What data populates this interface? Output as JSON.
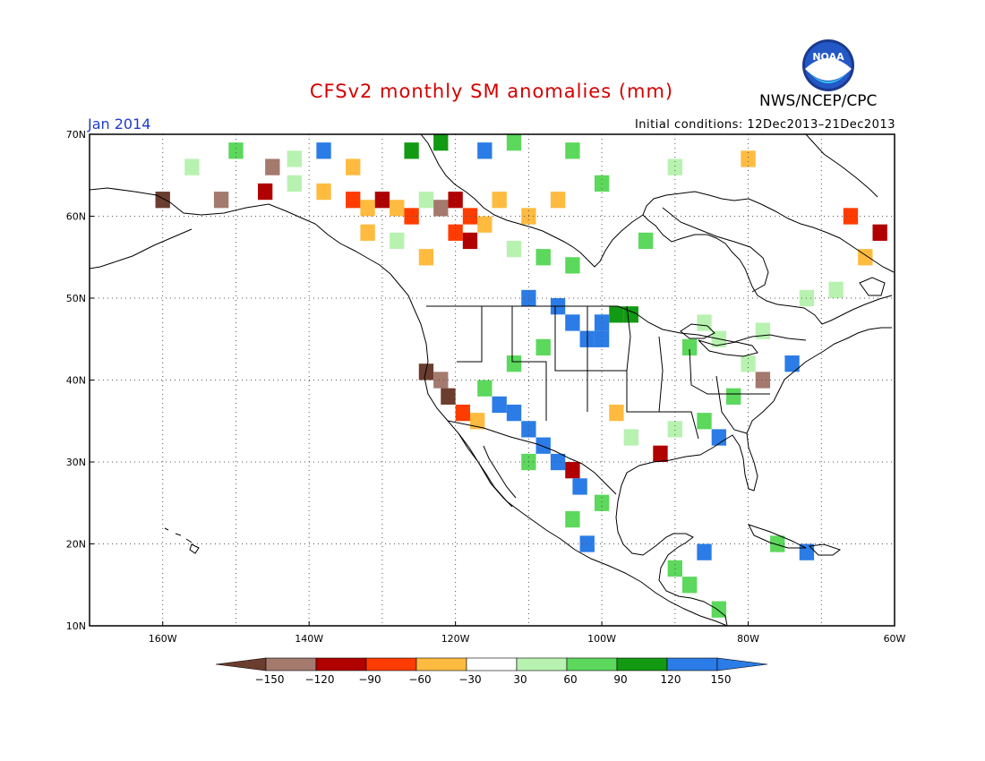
{
  "title": "CFSv2 monthly SM anomalies (mm)",
  "agency": "NWS/NCEP/CPC",
  "logo_text": "NOAA",
  "month_label": "Jan 2014",
  "initial_conditions": "Initial conditions: 12Dec2013–21Dec2013",
  "map": {
    "projection": "lat-lon",
    "lon_range": [
      -170,
      -60
    ],
    "lat_range": [
      10,
      70
    ],
    "gridlines": "dotted",
    "lat_ticks": [
      "10N",
      "20N",
      "30N",
      "40N",
      "50N",
      "60N",
      "70N"
    ],
    "lon_ticks": [
      "160W",
      "140W",
      "120W",
      "100W",
      "80W",
      "60W"
    ]
  },
  "colorbar": {
    "levels": [
      -150,
      -120,
      -90,
      -60,
      -30,
      30,
      60,
      90,
      120,
      150
    ],
    "labels": [
      "−150",
      "−120",
      "−90",
      "−60",
      "−30",
      "30",
      "60",
      "90",
      "120",
      "150"
    ],
    "colors": [
      "#6b3d2e",
      "#a47a6e",
      "#b00000",
      "#ff3c00",
      "#ffbb40",
      "#ffffff",
      "#b8f2b0",
      "#5cd85c",
      "#139a13",
      "#2b7ce6",
      "#2b7ce6"
    ]
  },
  "anomaly_cells": [
    [
      -145,
      66,
      "#a47a6e"
    ],
    [
      -142,
      64,
      "#b8f2b0"
    ],
    [
      -138,
      63,
      "#ffbb40"
    ],
    [
      -134,
      62,
      "#ff3c00"
    ],
    [
      -132,
      61,
      "#ffbb40"
    ],
    [
      -130,
      62,
      "#b00000"
    ],
    [
      -128,
      61,
      "#ffbb40"
    ],
    [
      -126,
      60,
      "#ff3c00"
    ],
    [
      -124,
      62,
      "#b8f2b0"
    ],
    [
      -122,
      61,
      "#a47a6e"
    ],
    [
      -120,
      62,
      "#b00000"
    ],
    [
      -118,
      60,
      "#ff3c00"
    ],
    [
      -116,
      59,
      "#ffbb40"
    ],
    [
      -114,
      62,
      "#ffbb40"
    ],
    [
      -110,
      60,
      "#ffbb40"
    ],
    [
      -106,
      62,
      "#ffbb40"
    ],
    [
      -132,
      58,
      "#ffbb40"
    ],
    [
      -128,
      57,
      "#b8f2b0"
    ],
    [
      -124,
      55,
      "#ffbb40"
    ],
    [
      -120,
      58,
      "#ff3c00"
    ],
    [
      -118,
      57,
      "#b00000"
    ],
    [
      -112,
      56,
      "#b8f2b0"
    ],
    [
      -108,
      55,
      "#5cd85c"
    ],
    [
      -104,
      54,
      "#5cd85c"
    ],
    [
      -110,
      50,
      "#2b7ce6"
    ],
    [
      -106,
      49,
      "#2b7ce6"
    ],
    [
      -104,
      47,
      "#2b7ce6"
    ],
    [
      -100,
      47,
      "#2b7ce6"
    ],
    [
      -98,
      48,
      "#139a13"
    ],
    [
      -96,
      48,
      "#139a13"
    ],
    [
      -102,
      45,
      "#2b7ce6"
    ],
    [
      -100,
      45,
      "#2b7ce6"
    ],
    [
      -108,
      44,
      "#5cd85c"
    ],
    [
      -112,
      42,
      "#5cd85c"
    ],
    [
      -124,
      41,
      "#6b3d2e"
    ],
    [
      -122,
      40,
      "#a47a6e"
    ],
    [
      -121,
      38,
      "#6b3d2e"
    ],
    [
      -119,
      36,
      "#ff3c00"
    ],
    [
      -117,
      35,
      "#ffbb40"
    ],
    [
      -116,
      39,
      "#5cd85c"
    ],
    [
      -114,
      37,
      "#2b7ce6"
    ],
    [
      -112,
      36,
      "#2b7ce6"
    ],
    [
      -110,
      34,
      "#2b7ce6"
    ],
    [
      -108,
      32,
      "#2b7ce6"
    ],
    [
      -106,
      30,
      "#2b7ce6"
    ],
    [
      -110,
      30,
      "#5cd85c"
    ],
    [
      -104,
      29,
      "#b00000"
    ],
    [
      -103,
      27,
      "#2b7ce6"
    ],
    [
      -100,
      25,
      "#5cd85c"
    ],
    [
      -104,
      23,
      "#5cd85c"
    ],
    [
      -102,
      20,
      "#2b7ce6"
    ],
    [
      -98,
      36,
      "#ffbb40"
    ],
    [
      -96,
      33,
      "#b8f2b0"
    ],
    [
      -92,
      31,
      "#b00000"
    ],
    [
      -90,
      34,
      "#b8f2b0"
    ],
    [
      -86,
      35,
      "#5cd85c"
    ],
    [
      -84,
      33,
      "#2b7ce6"
    ],
    [
      -82,
      38,
      "#5cd85c"
    ],
    [
      -80,
      42,
      "#b8f2b0"
    ],
    [
      -78,
      40,
      "#a47a6e"
    ],
    [
      -74,
      42,
      "#2b7ce6"
    ],
    [
      -88,
      44,
      "#5cd85c"
    ],
    [
      -84,
      45,
      "#b8f2b0"
    ],
    [
      -90,
      17,
      "#5cd85c"
    ],
    [
      -86,
      19,
      "#2b7ce6"
    ],
    [
      -88,
      15,
      "#5cd85c"
    ],
    [
      -84,
      12,
      "#5cd85c"
    ],
    [
      -76,
      20,
      "#5cd85c"
    ],
    [
      -72,
      19,
      "#2b7ce6"
    ],
    [
      -66,
      60,
      "#ff3c00"
    ],
    [
      -62,
      58,
      "#b00000"
    ],
    [
      -64,
      55,
      "#ffbb40"
    ],
    [
      -68,
      51,
      "#b8f2b0"
    ],
    [
      -72,
      50,
      "#b8f2b0"
    ],
    [
      -78,
      46,
      "#b8f2b0"
    ],
    [
      -86,
      47,
      "#b8f2b0"
    ],
    [
      -94,
      57,
      "#5cd85c"
    ],
    [
      -80,
      67,
      "#ffbb40"
    ],
    [
      -90,
      66,
      "#b8f2b0"
    ],
    [
      -100,
      64,
      "#5cd85c"
    ],
    [
      -126,
      68,
      "#139a13"
    ],
    [
      -122,
      69,
      "#139a13"
    ],
    [
      -116,
      68,
      "#2b7ce6"
    ],
    [
      -112,
      69,
      "#5cd85c"
    ],
    [
      -104,
      68,
      "#5cd85c"
    ],
    [
      -150,
      68,
      "#5cd85c"
    ],
    [
      -156,
      66,
      "#b8f2b0"
    ],
    [
      -160,
      62,
      "#6b3d2e"
    ],
    [
      -152,
      62,
      "#a47a6e"
    ],
    [
      -146,
      63,
      "#b00000"
    ],
    [
      -138,
      68,
      "#2b7ce6"
    ],
    [
      -142,
      67,
      "#b8f2b0"
    ],
    [
      -134,
      66,
      "#ffbb40"
    ]
  ]
}
